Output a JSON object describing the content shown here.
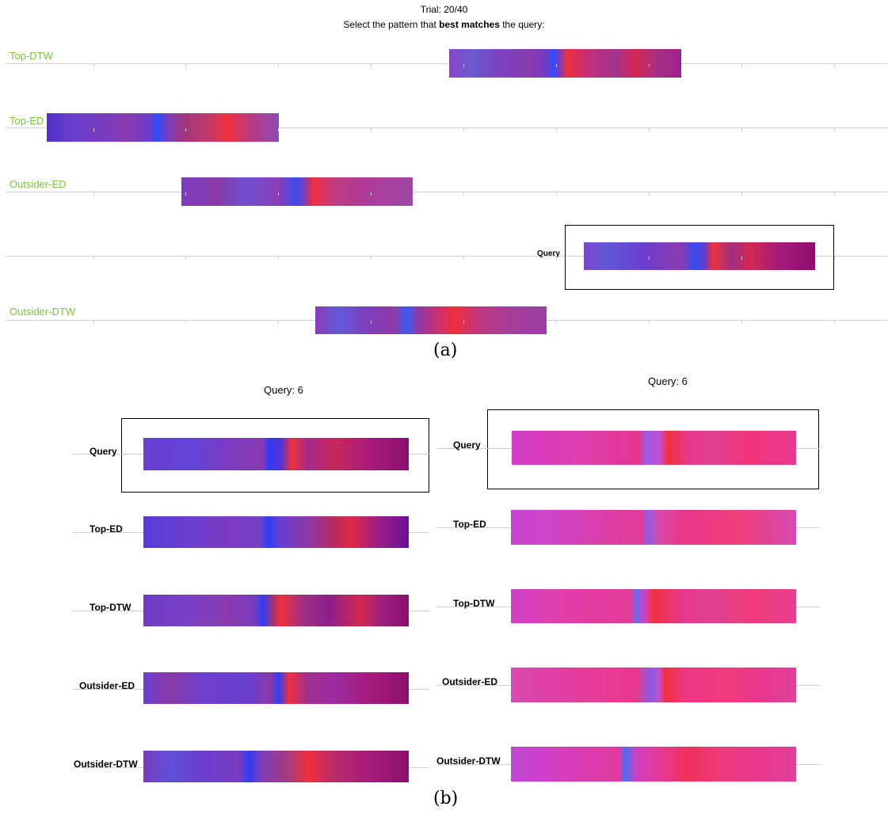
{
  "header": {
    "trial": "Trial: 20/40",
    "instruction_pre": "Select the pattern that ",
    "instruction_bold": "best matches",
    "instruction_post": " the query:"
  },
  "panel_a": {
    "caption": "(a)",
    "rows": [
      {
        "label": "Top-DTW"
      },
      {
        "label": "Top-ED"
      },
      {
        "label": "Outsider-ED"
      },
      {
        "label": "Query"
      },
      {
        "label": "Outsider-DTW"
      }
    ]
  },
  "panel_b": {
    "caption": "(b)",
    "left": {
      "title": "Query: 6",
      "rows": [
        {
          "label": "Query"
        },
        {
          "label": "Top-ED"
        },
        {
          "label": "Top-DTW"
        },
        {
          "label": "Outsider-ED"
        },
        {
          "label": "Outsider-DTW"
        }
      ]
    },
    "right": {
      "title": "Query: 6",
      "rows": [
        {
          "label": "Query"
        },
        {
          "label": "Top-ED"
        },
        {
          "label": "Top-DTW"
        },
        {
          "label": "Outsider-ED"
        },
        {
          "label": "Outsider-DTW"
        }
      ]
    }
  },
  "colors": {
    "label_green": "#7dc242",
    "violet": "#6a3fcf",
    "blue": "#2f4cff",
    "red": "#f0303c",
    "maroon": "#8c0f6e",
    "magenta": "#d646c9",
    "pink": "#f0358a"
  }
}
